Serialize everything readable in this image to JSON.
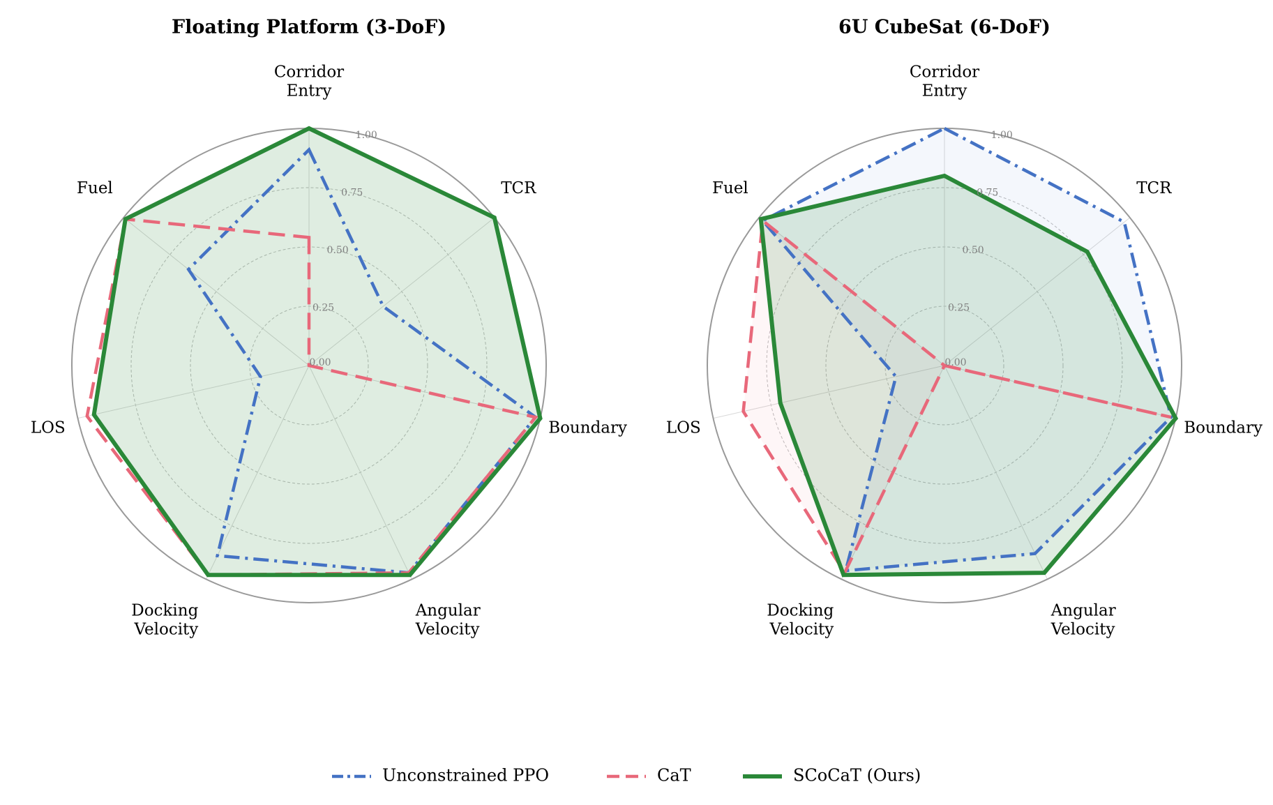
{
  "chart_data": [
    {
      "type": "radar",
      "title": "Floating Platform (3-DoF)",
      "axes": [
        [
          "Corridor",
          "Entry"
        ],
        [
          "TCR"
        ],
        [
          "Boundary"
        ],
        [
          "Angular",
          "Velocity"
        ],
        [
          "Docking",
          "Velocity"
        ],
        [
          "LOS"
        ],
        [
          "Fuel"
        ]
      ],
      "rlim": [
        0,
        1
      ],
      "rticks": [
        0.0,
        0.25,
        0.5,
        0.75,
        1.0
      ],
      "rtick_labels": [
        "0.00",
        "0.25",
        "0.50",
        "0.75",
        "1.00"
      ],
      "grid": true,
      "series": [
        {
          "name": "Unconstrained PPO",
          "values": [
            0.91,
            0.4,
            0.98,
            0.97,
            0.89,
            0.21,
            0.65
          ]
        },
        {
          "name": "CaT",
          "values": [
            0.54,
            0.0,
            0.98,
            0.97,
            0.98,
            0.96,
            0.99
          ]
        },
        {
          "name": "SCoCaT (Ours)",
          "values": [
            1.0,
            1.0,
            1.0,
            0.98,
            0.98,
            0.93,
            0.99
          ]
        }
      ]
    },
    {
      "type": "radar",
      "title": "6U CubeSat (6-DoF)",
      "axes": [
        [
          "Corridor",
          "Entry"
        ],
        [
          "TCR"
        ],
        [
          "Boundary"
        ],
        [
          "Angular",
          "Velocity"
        ],
        [
          "Docking",
          "Velocity"
        ],
        [
          "LOS"
        ],
        [
          "Fuel"
        ]
      ],
      "rlim": [
        0,
        1
      ],
      "rticks": [
        0.0,
        0.25,
        0.5,
        0.75,
        1.0
      ],
      "rtick_labels": [
        "0.00",
        "0.25",
        "0.50",
        "0.75",
        "1.00"
      ],
      "grid": true,
      "series": [
        {
          "name": "Unconstrained PPO",
          "values": [
            1.0,
            0.97,
            0.98,
            0.88,
            0.96,
            0.21,
            0.98
          ]
        },
        {
          "name": "CaT",
          "values": [
            0.0,
            0.0,
            0.98,
            0.0,
            0.97,
            0.87,
            0.98
          ]
        },
        {
          "name": "SCoCaT (Ours)",
          "values": [
            0.8,
            0.77,
            1.0,
            0.97,
            0.98,
            0.71,
            0.99
          ]
        }
      ]
    }
  ],
  "legend": {
    "placement": "bottom-center",
    "entries": [
      {
        "label": "Unconstrained PPO",
        "color": "#4472c4",
        "dash": "dashdot"
      },
      {
        "label": "CaT",
        "color": "#e8687a",
        "dash": "dashed"
      },
      {
        "label": "SCoCaT (Ours)",
        "color": "#2a8838",
        "dash": "solid"
      }
    ]
  },
  "colors": {
    "ppo": "#4472c4",
    "cat": "#e8687a",
    "scocat": "#2a8838",
    "outer_ring": "#999999",
    "grid": "#bdbdbd"
  }
}
